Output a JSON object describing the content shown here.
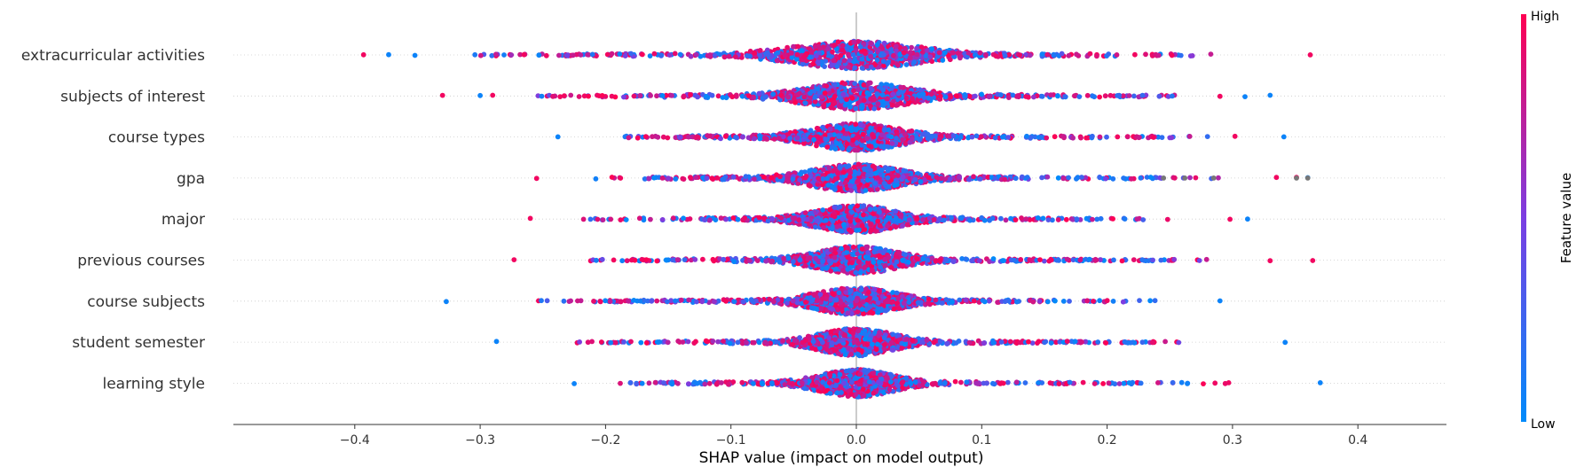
{
  "chart_data": {
    "type": "scatter",
    "subtype": "shap-beeswarm",
    "title": "",
    "xlabel": "SHAP value (impact on model output)",
    "ylabel": "",
    "xlim": [
      -0.43,
      0.41
    ],
    "x_ticks": [
      -0.4,
      -0.3,
      -0.2,
      -0.1,
      0.0,
      0.1,
      0.2,
      0.3,
      0.4
    ],
    "x_tick_labels": [
      "−0.4",
      "−0.3",
      "−0.2",
      "−0.1",
      "0.0",
      "0.1",
      "0.2",
      "0.3",
      "0.4"
    ],
    "grid": "horizontal-dotted",
    "features": [
      {
        "name": "extracurricular activities",
        "min": -0.393,
        "max": 0.362,
        "spread": 0.085,
        "outliers": [
          -0.393,
          -0.373,
          -0.352,
          -0.265,
          0.362
        ]
      },
      {
        "name": "subjects of interest",
        "min": -0.33,
        "max": 0.33,
        "spread": 0.07,
        "outliers": [
          -0.33,
          -0.3,
          -0.29,
          0.29,
          0.31,
          0.33
        ]
      },
      {
        "name": "course types",
        "min": -0.238,
        "max": 0.341,
        "spread": 0.06,
        "outliers": [
          -0.238,
          0.302,
          0.341
        ]
      },
      {
        "name": "gpa",
        "min": -0.255,
        "max": 0.36,
        "spread": 0.06,
        "outliers": [
          -0.255,
          0.335,
          0.351,
          0.36
        ]
      },
      {
        "name": "major",
        "min": -0.26,
        "max": 0.312,
        "spread": 0.055,
        "outliers": [
          -0.26,
          0.298,
          0.312
        ]
      },
      {
        "name": "previous courses",
        "min": -0.273,
        "max": 0.364,
        "spread": 0.055,
        "outliers": [
          -0.273,
          0.33,
          0.364
        ]
      },
      {
        "name": "course subjects",
        "min": -0.327,
        "max": 0.29,
        "spread": 0.055,
        "outliers": [
          -0.327,
          0.29
        ]
      },
      {
        "name": "student semester",
        "min": -0.287,
        "max": 0.342,
        "spread": 0.05,
        "outliers": [
          -0.287,
          0.342
        ]
      },
      {
        "name": "learning style",
        "min": -0.225,
        "max": 0.37,
        "spread": 0.05,
        "outliers": [
          -0.225,
          0.37
        ]
      }
    ],
    "colorbar": {
      "title": "Feature value",
      "high_label": "High",
      "low_label": "Low",
      "high_color": "#ff0052",
      "low_color": "#008bfb"
    },
    "colors": {
      "high": "#ff0052",
      "low": "#008bfb",
      "missing": "#777777",
      "zero_line": "#999999",
      "axis": "#333333"
    }
  }
}
